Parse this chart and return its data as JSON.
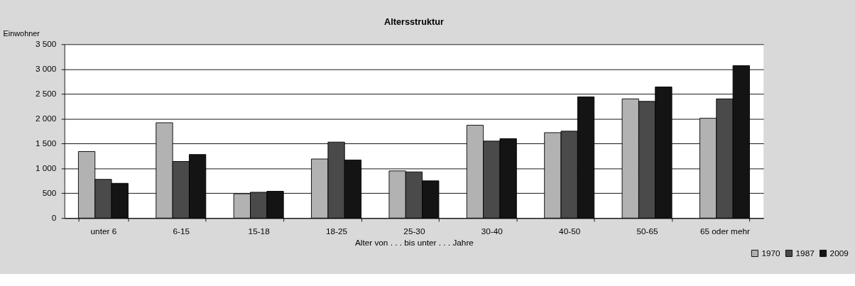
{
  "chart_data": {
    "type": "bar",
    "title": "Altersstruktur",
    "ylabel": "Einwohner",
    "xlabel": "Alter von . . . bis unter . . . Jahre",
    "categories": [
      "unter 6",
      "6-15",
      "15-18",
      "18-25",
      "25-30",
      "30-40",
      "40-50",
      "50-65",
      "65 oder mehr"
    ],
    "series": [
      {
        "name": "1970",
        "color": "#b2b2b2",
        "values": [
          1340,
          1920,
          490,
          1190,
          950,
          1870,
          1720,
          2400,
          2010
        ]
      },
      {
        "name": "1987",
        "color": "#4a4a4a",
        "values": [
          780,
          1140,
          520,
          1530,
          930,
          1550,
          1750,
          2350,
          2400
        ]
      },
      {
        "name": "2009",
        "color": "#141414",
        "values": [
          700,
          1280,
          540,
          1170,
          750,
          1600,
          2440,
          2640,
          3070
        ]
      }
    ],
    "ylim": [
      0,
      3500
    ],
    "yticks": [
      0,
      500,
      {
        "value": 1000,
        "label": "1 000"
      },
      {
        "value": 1500,
        "label": "1 500"
      },
      {
        "value": 2000,
        "label": "2 000"
      },
      {
        "value": 2500,
        "label": "2 500"
      },
      {
        "value": 3000,
        "label": "3 000"
      },
      {
        "value": 3500,
        "label": "3 500"
      }
    ],
    "grid": "y",
    "legend": "bottom right"
  }
}
